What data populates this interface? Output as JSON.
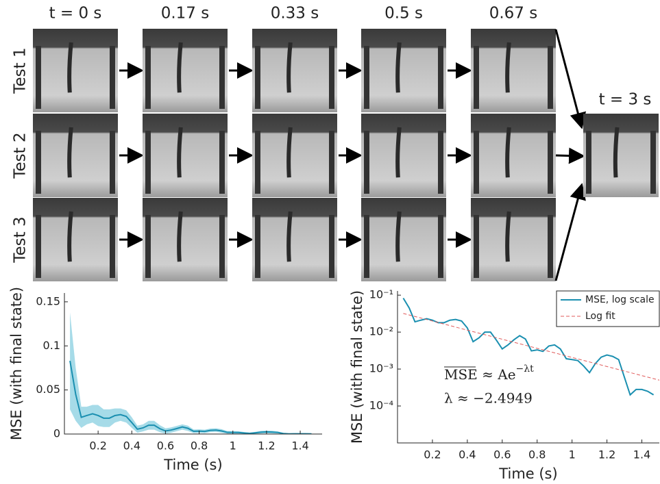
{
  "panels": {
    "time_labels": [
      "t = 0 s",
      "0.17 s",
      "0.33 s",
      "0.5 s",
      "0.67 s"
    ],
    "final_label": "t = 3 s",
    "row_labels": [
      "Test 1",
      "Test 2",
      "Test 3"
    ]
  },
  "chart_data": [
    {
      "type": "line",
      "xlabel": "Time (s)",
      "ylabel": "MSE (with final state)",
      "x": [
        0.033,
        0.067,
        0.1,
        0.133,
        0.167,
        0.2,
        0.233,
        0.267,
        0.3,
        0.333,
        0.367,
        0.4,
        0.433,
        0.467,
        0.5,
        0.533,
        0.567,
        0.6,
        0.633,
        0.667,
        0.7,
        0.733,
        0.767,
        0.8,
        0.833,
        0.867,
        0.9,
        0.933,
        0.967,
        1.0,
        1.033,
        1.067,
        1.1,
        1.133,
        1.167,
        1.2,
        1.233,
        1.267,
        1.3,
        1.333,
        1.367,
        1.4,
        1.433,
        1.467
      ],
      "series": [
        {
          "color": "#1a8fb0",
          "band_color": "#a6dbe8",
          "values": [
            0.083,
            0.045,
            0.019,
            0.021,
            0.023,
            0.021,
            0.018,
            0.018,
            0.021,
            0.022,
            0.02,
            0.013,
            0.0055,
            0.007,
            0.01,
            0.01,
            0.006,
            0.0035,
            0.0045,
            0.0062,
            0.008,
            0.0065,
            0.0031,
            0.0033,
            0.003,
            0.0042,
            0.0045,
            0.0035,
            0.0019,
            0.0018,
            0.0017,
            0.0012,
            0.0008,
            0.0014,
            0.0021,
            0.0024,
            0.0022,
            0.0018,
            0.0006,
            0.0002,
            0.00028,
            0.00028,
            0.00025,
            0.0002
          ],
          "error": [
            0.055,
            0.03,
            0.012,
            0.01,
            0.01,
            0.012,
            0.01,
            0.01,
            0.008,
            0.007,
            0.007,
            0.006,
            0.004,
            0.004,
            0.005,
            0.005,
            0.004,
            0.003,
            0.003,
            0.003,
            0.003,
            0.003,
            0.002,
            0.002,
            0.002,
            0.002,
            0.002,
            0.002,
            0.0015,
            0.0015,
            0.0015,
            0.001,
            0.0008,
            0.001,
            0.0015,
            0.0015,
            0.0015,
            0.0012,
            0.0006,
            0.0002,
            0.00025,
            0.00025,
            0.0002,
            0.0002
          ]
        }
      ],
      "xlim": [
        0,
        1.53
      ],
      "ylim": [
        0,
        0.16
      ],
      "xticks": [
        0.2,
        0.4,
        0.6,
        0.8,
        1,
        1.2,
        1.4
      ],
      "yticks": [
        0,
        0.05,
        0.1,
        0.15
      ]
    },
    {
      "type": "line",
      "log_y": true,
      "xlabel": "Time (s)",
      "ylabel": "MSE (with final state)",
      "legend": "upper right",
      "x": [
        0.033,
        0.067,
        0.1,
        0.133,
        0.167,
        0.2,
        0.233,
        0.267,
        0.3,
        0.333,
        0.367,
        0.4,
        0.433,
        0.467,
        0.5,
        0.533,
        0.567,
        0.6,
        0.633,
        0.667,
        0.7,
        0.733,
        0.767,
        0.8,
        0.833,
        0.867,
        0.9,
        0.933,
        0.967,
        1.0,
        1.033,
        1.067,
        1.1,
        1.133,
        1.167,
        1.2,
        1.233,
        1.267,
        1.3,
        1.333,
        1.367,
        1.4,
        1.433,
        1.467
      ],
      "series": [
        {
          "name": "MSE, log scale",
          "color": "#1a8fb0",
          "values": [
            0.083,
            0.045,
            0.019,
            0.021,
            0.023,
            0.021,
            0.018,
            0.018,
            0.021,
            0.022,
            0.02,
            0.013,
            0.0055,
            0.007,
            0.01,
            0.01,
            0.006,
            0.0035,
            0.0045,
            0.0062,
            0.008,
            0.0065,
            0.0031,
            0.0033,
            0.003,
            0.0042,
            0.0045,
            0.0035,
            0.0019,
            0.0018,
            0.0017,
            0.0012,
            0.0008,
            0.0014,
            0.0021,
            0.0024,
            0.0022,
            0.0018,
            0.0006,
            0.0002,
            0.00028,
            0.00028,
            0.00025,
            0.0002
          ]
        },
        {
          "name": "Log fit",
          "color": "#e05a5a",
          "dashed": true,
          "x": [
            0.033,
            1.5
          ],
          "values": [
            0.032,
            0.0005
          ]
        }
      ],
      "annotations": [
        {
          "base": "MSE ≈ Ae",
          "sup": "−λt"
        },
        {
          "text": "λ ≈ −2.4949"
        }
      ],
      "xlim": [
        0,
        1.5
      ],
      "ylim": [
        1e-05,
        0.13
      ],
      "xticks": [
        0.2,
        0.4,
        0.6,
        0.8,
        1,
        1.2,
        1.4
      ],
      "yticks": [
        {
          "value": 0.0001,
          "label": "10⁻⁴"
        },
        {
          "value": 0.001,
          "label": "10⁻³"
        },
        {
          "value": 0.01,
          "label": "10⁻²"
        },
        {
          "value": 0.1,
          "label": "10⁻¹"
        }
      ]
    }
  ]
}
